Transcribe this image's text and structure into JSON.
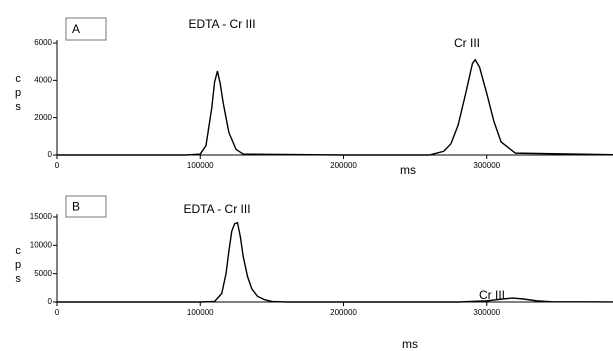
{
  "chart_data": [
    {
      "type": "line",
      "panel_label": "A",
      "x_label": "ms",
      "y_label": "cps",
      "annotations": [
        "EDTA - Cr III",
        "Cr III"
      ],
      "xlim": [
        0,
        400000
      ],
      "xticks": [
        0,
        100000,
        200000,
        300000,
        400000
      ],
      "ylim": [
        0,
        6000
      ],
      "yticks": [
        0,
        2000,
        4000,
        6000
      ],
      "series": [
        {
          "name": null,
          "color": "#000000",
          "x": [
            0,
            50000,
            90000,
            100000,
            104000,
            108000,
            110000,
            112000,
            114000,
            116000,
            120000,
            125000,
            130000,
            200000,
            260000,
            270000,
            275000,
            280000,
            285000,
            290000,
            292000,
            295000,
            300000,
            305000,
            310000,
            320000,
            400000
          ],
          "values": [
            0,
            0,
            0,
            50,
            500,
            2500,
            3900,
            4500,
            3800,
            2800,
            1200,
            300,
            50,
            0,
            0,
            200,
            600,
            1600,
            3200,
            4900,
            5100,
            4700,
            3300,
            1800,
            700,
            100,
            0
          ]
        }
      ]
    },
    {
      "type": "line",
      "panel_label": "B",
      "x_label": "ms",
      "y_label": "cps",
      "annotations": [
        "EDTA - Cr III",
        "Cr III"
      ],
      "xlim": [
        0,
        400000
      ],
      "xticks": [
        0,
        100000,
        200000,
        300000,
        400000
      ],
      "ylim": [
        0,
        15000
      ],
      "yticks": [
        0,
        5000,
        10000,
        15000
      ],
      "series": [
        {
          "name": null,
          "color": "#000000",
          "x": [
            0,
            100000,
            110000,
            115000,
            118000,
            120000,
            122000,
            124000,
            126000,
            128000,
            130000,
            133000,
            136000,
            140000,
            145000,
            150000,
            160000,
            280000,
            300000,
            310000,
            318000,
            325000,
            335000,
            345000,
            400000
          ],
          "values": [
            0,
            0,
            100,
            1500,
            5000,
            9000,
            12500,
            13800,
            14000,
            11500,
            8000,
            4500,
            2300,
            1000,
            400,
            100,
            0,
            0,
            200,
            500,
            700,
            550,
            200,
            50,
            0
          ]
        }
      ]
    }
  ]
}
